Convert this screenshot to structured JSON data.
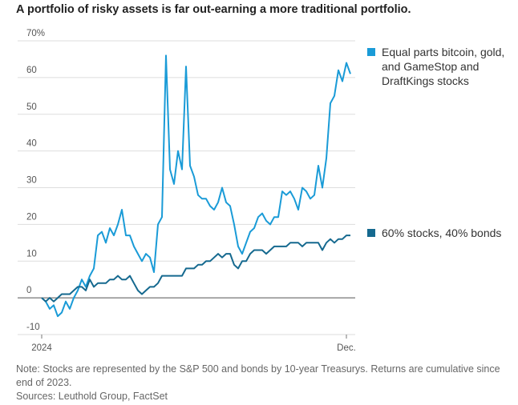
{
  "chart_data": {
    "type": "line",
    "title": "A portfolio of risky assets is far out-earning a more traditional portfolio.",
    "note": "Note: Stocks are represented by the S&P 500 and bonds by 10-year Treasurys. Returns are cumulative since end of 2023.",
    "source": "Sources: Leuthold Group, FactSet",
    "categories": [
      "2024",
      null,
      null,
      null,
      null,
      null,
      null,
      null,
      null,
      null,
      null,
      null,
      null,
      null,
      null,
      null,
      null,
      null,
      null,
      null,
      null,
      null,
      null,
      null,
      null,
      null,
      null,
      null,
      null,
      null,
      null,
      null,
      null,
      null,
      null,
      null,
      null,
      null,
      null,
      null,
      null,
      null,
      null,
      null,
      null,
      null,
      null,
      null,
      null,
      null,
      null,
      null,
      null,
      null,
      null,
      null,
      null,
      null,
      null,
      null,
      null,
      null,
      null,
      null,
      null,
      null,
      null,
      null,
      null,
      null,
      null,
      null,
      null,
      null,
      null,
      null,
      "Dec.",
      null
    ],
    "series": [
      {
        "name": "Equal parts bitcoin, gold, and GameStop and DraftKings stocks",
        "color": "#1a9bd7",
        "values": [
          0,
          -1,
          -3,
          -2,
          -5,
          -4,
          -1,
          -3,
          0,
          2,
          5,
          3,
          6,
          8,
          17,
          18,
          15,
          19,
          17,
          20,
          24,
          17,
          17,
          14,
          12,
          10,
          12,
          11,
          7,
          20,
          22,
          66,
          35,
          31,
          40,
          35,
          63,
          36,
          33,
          28,
          27,
          27,
          25,
          24,
          26,
          30,
          26,
          25,
          20,
          14,
          12,
          15,
          18,
          19,
          22,
          23,
          21,
          20,
          22,
          22,
          29,
          28,
          29,
          27,
          24,
          30,
          29,
          27,
          28,
          36,
          30,
          38,
          53,
          55,
          62,
          59,
          64,
          61
        ]
      },
      {
        "name": "60% stocks, 40% bonds",
        "color": "#15698f",
        "values": [
          0,
          -1,
          0,
          -1,
          0,
          1,
          1,
          1,
          2,
          3,
          3,
          2,
          5,
          3,
          4,
          4,
          4,
          5,
          5,
          6,
          5,
          5,
          6,
          4,
          2,
          1,
          2,
          3,
          3,
          4,
          6,
          6,
          6,
          6,
          6,
          6,
          8,
          8,
          8,
          9,
          9,
          10,
          10,
          11,
          12,
          11,
          12,
          12,
          9,
          8,
          10,
          10,
          12,
          13,
          13,
          13,
          12,
          13,
          14,
          14,
          14,
          14,
          15,
          15,
          15,
          14,
          15,
          15,
          15,
          15,
          13,
          15,
          16,
          15,
          16,
          16,
          17,
          17
        ]
      }
    ],
    "ylim": [
      -10,
      70
    ],
    "yticks": [
      -10,
      0,
      10,
      20,
      30,
      40,
      50,
      60,
      {
        "value": 70,
        "label": "70%"
      }
    ],
    "grid": true
  }
}
